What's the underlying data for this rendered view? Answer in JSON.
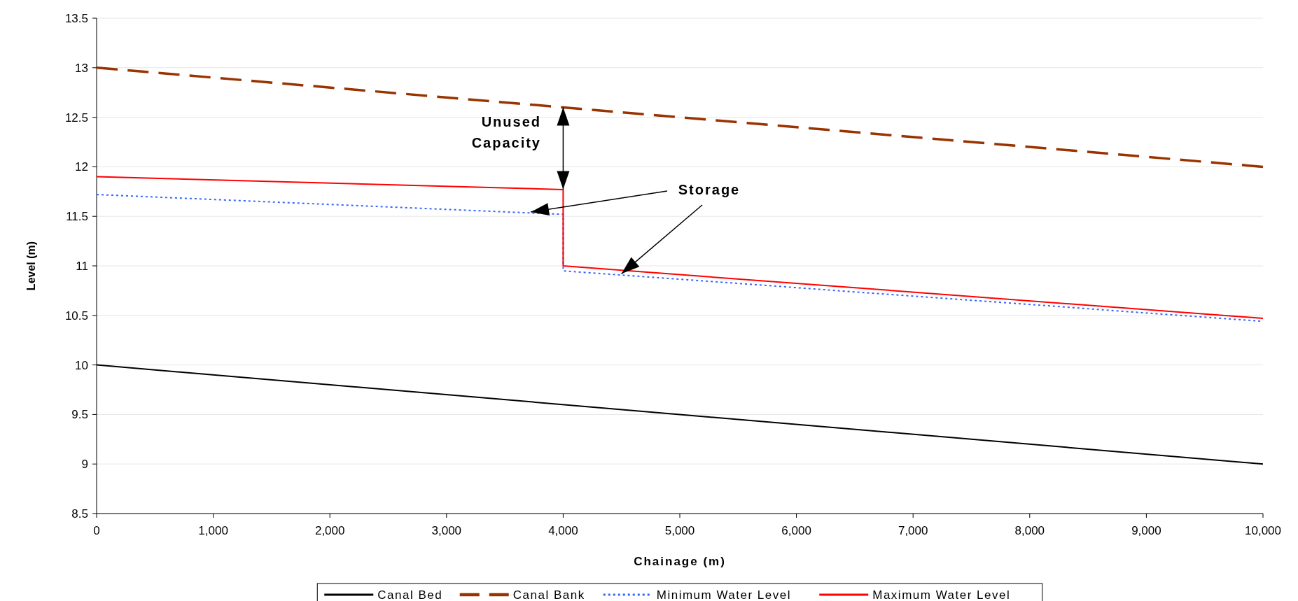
{
  "chart_data": {
    "type": "line",
    "xlabel": "Chainage (m)",
    "ylabel": "Level (m)",
    "xlim": [
      0,
      10000
    ],
    "xticks": [
      {
        "value": 0,
        "label": "0"
      },
      {
        "value": 1000,
        "label": "1,000"
      },
      {
        "value": 2000,
        "label": "2,000"
      },
      {
        "value": 3000,
        "label": "3,000"
      },
      {
        "value": 4000,
        "label": "4,000"
      },
      {
        "value": 5000,
        "label": "5,000"
      },
      {
        "value": 6000,
        "label": "6,000"
      },
      {
        "value": 7000,
        "label": "7,000"
      },
      {
        "value": 8000,
        "label": "8,000"
      },
      {
        "value": 9000,
        "label": "9,000"
      },
      {
        "value": 10000,
        "label": "10,000"
      }
    ],
    "ylim": [
      8.5,
      13.5
    ],
    "yticks": [
      8.5,
      9,
      9.5,
      10,
      10.5,
      11,
      11.5,
      12,
      12.5,
      13,
      13.5
    ],
    "grid": "y",
    "legend": "bottom",
    "series": [
      {
        "name": "Canal Bed",
        "color": "#000000",
        "line_style": "solid",
        "x": [
          0,
          10000
        ],
        "values": [
          10,
          9
        ]
      },
      {
        "name": "Canal Bank",
        "color": "#993300",
        "line_style": "dashed",
        "x": [
          0,
          10000
        ],
        "values": [
          13,
          12
        ]
      },
      {
        "name": "Minimum Water Level",
        "color": "#3366ff",
        "line_style": "dotted",
        "x": [
          0,
          4000,
          4000,
          10000
        ],
        "values": [
          11.72,
          11.52,
          10.95,
          10.44
        ]
      },
      {
        "name": "Maximum Water Level",
        "color": "#ff0000",
        "line_style": "solid",
        "x": [
          0,
          4000,
          4000,
          10000
        ],
        "values": [
          11.9,
          11.77,
          11,
          10.47
        ]
      }
    ],
    "annotations": [
      {
        "text": "Unused Capacity",
        "x": 4000,
        "y": 12.6
      },
      {
        "text": "Storage",
        "x": 4500,
        "y": 10.92
      }
    ]
  }
}
